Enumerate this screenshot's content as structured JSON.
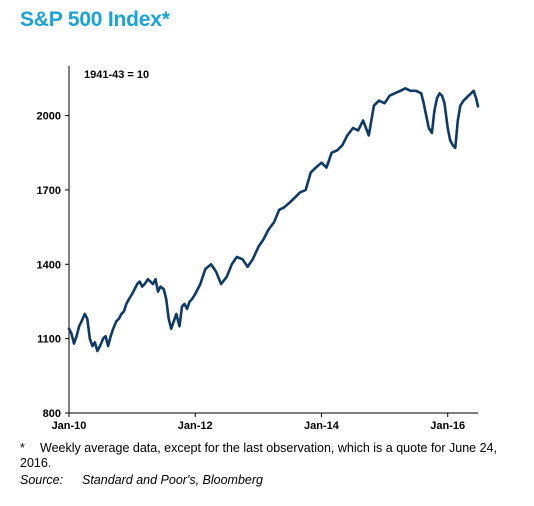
{
  "title": "S&P 500 Index*",
  "colors": {
    "title": "#1aa3d8",
    "line": "#0d3a66",
    "axis": "#000000"
  },
  "footnote": {
    "marker": "*",
    "text": "Weekly average data, except for the last observation, which is a quote for June 24, 2016."
  },
  "source": {
    "label": "Source:",
    "text": "Standard and Poor's, Bloomberg"
  },
  "chart_data": {
    "type": "line",
    "annotation": "1941-43 = 10",
    "xlabel": "",
    "ylabel": "",
    "ylim": [
      800,
      2200
    ],
    "yticks": [
      800,
      1100,
      1400,
      1700,
      2000
    ],
    "xlim": [
      2010.0,
      2016.48
    ],
    "xticks": [
      {
        "value": 2010.0,
        "label": "Jan-10"
      },
      {
        "value": 2012.0,
        "label": "Jan-12"
      },
      {
        "value": 2014.0,
        "label": "Jan-14"
      },
      {
        "value": 2016.0,
        "label": "Jan-16"
      }
    ],
    "grid": false,
    "legend": "none",
    "series": [
      {
        "x": [
          2010.0,
          2010.04,
          2010.08,
          2010.12,
          2010.16,
          2010.2,
          2010.25,
          2010.29,
          2010.33,
          2010.37,
          2010.41,
          2010.45,
          2010.5,
          2010.54,
          2010.58,
          2010.62,
          2010.66,
          2010.7,
          2010.75,
          2010.79,
          2010.83,
          2010.87,
          2010.91,
          2010.95,
          2011.0,
          2011.04,
          2011.08,
          2011.12,
          2011.16,
          2011.2,
          2011.25,
          2011.29,
          2011.33,
          2011.37,
          2011.41,
          2011.45,
          2011.5,
          2011.54,
          2011.58,
          2011.62,
          2011.66,
          2011.7,
          2011.75,
          2011.79,
          2011.83,
          2011.87,
          2011.91,
          2011.95,
          2012.0,
          2012.08,
          2012.16,
          2012.25,
          2012.33,
          2012.41,
          2012.5,
          2012.58,
          2012.66,
          2012.75,
          2012.83,
          2012.91,
          2013.0,
          2013.08,
          2013.16,
          2013.25,
          2013.33,
          2013.41,
          2013.5,
          2013.58,
          2013.66,
          2013.75,
          2013.83,
          2013.91,
          2014.0,
          2014.08,
          2014.16,
          2014.25,
          2014.33,
          2014.41,
          2014.5,
          2014.58,
          2014.66,
          2014.75,
          2014.83,
          2014.91,
          2015.0,
          2015.08,
          2015.16,
          2015.25,
          2015.33,
          2015.41,
          2015.5,
          2015.58,
          2015.62,
          2015.66,
          2015.7,
          2015.75,
          2015.79,
          2015.83,
          2015.87,
          2015.91,
          2015.95,
          2016.0,
          2016.04,
          2016.08,
          2016.12,
          2016.16,
          2016.2,
          2016.25,
          2016.29,
          2016.33,
          2016.37,
          2016.41,
          2016.45,
          2016.48
        ],
        "values": [
          1140,
          1120,
          1080,
          1110,
          1150,
          1170,
          1200,
          1180,
          1100,
          1070,
          1085,
          1050,
          1075,
          1100,
          1110,
          1070,
          1110,
          1140,
          1170,
          1180,
          1200,
          1210,
          1240,
          1260,
          1280,
          1300,
          1320,
          1330,
          1310,
          1320,
          1340,
          1330,
          1320,
          1340,
          1290,
          1310,
          1300,
          1260,
          1180,
          1140,
          1170,
          1200,
          1150,
          1230,
          1240,
          1220,
          1250,
          1260,
          1280,
          1320,
          1380,
          1400,
          1370,
          1320,
          1350,
          1400,
          1430,
          1420,
          1390,
          1420,
          1470,
          1500,
          1540,
          1570,
          1620,
          1630,
          1650,
          1670,
          1690,
          1700,
          1770,
          1790,
          1810,
          1790,
          1850,
          1860,
          1880,
          1920,
          1950,
          1940,
          1980,
          1920,
          2040,
          2060,
          2050,
          2080,
          2090,
          2100,
          2110,
          2100,
          2100,
          2090,
          2050,
          2000,
          1950,
          1930,
          2020,
          2070,
          2090,
          2080,
          2050,
          1950,
          1900,
          1880,
          1870,
          1980,
          2040,
          2060,
          2070,
          2080,
          2090,
          2100,
          2070,
          2037
        ]
      }
    ]
  }
}
